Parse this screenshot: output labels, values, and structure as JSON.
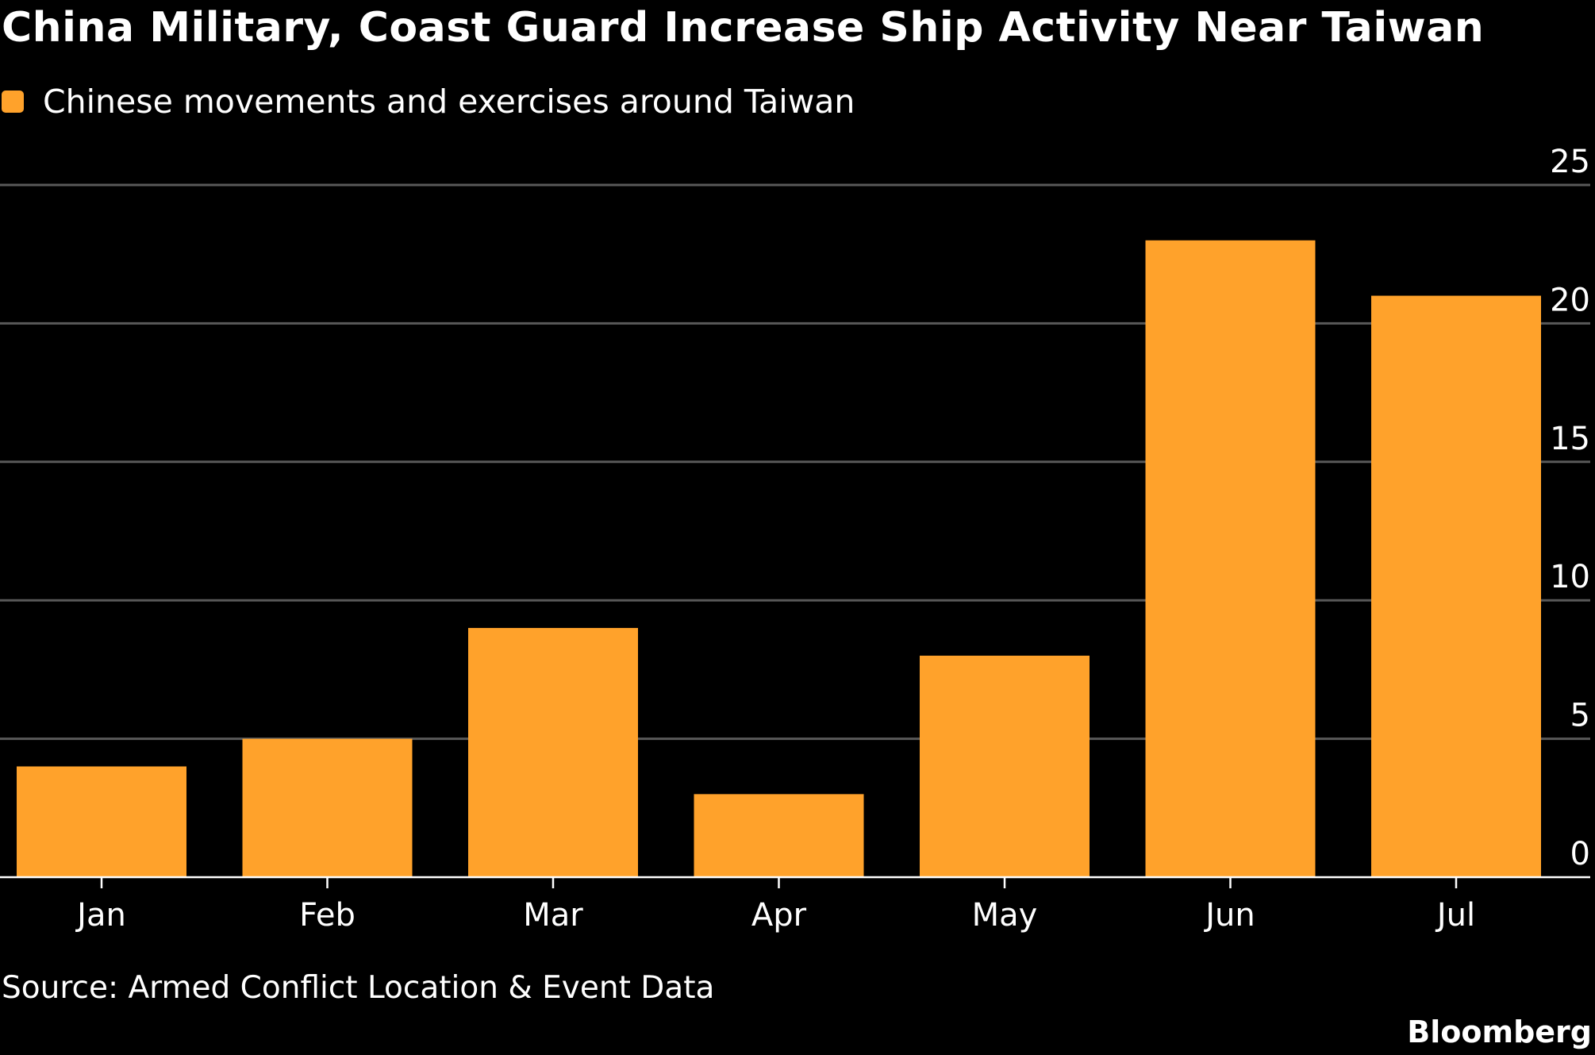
{
  "chart_data": {
    "type": "bar",
    "title": "China Military, Coast Guard Increase Ship Activity Near Taiwan",
    "categories": [
      "Jan",
      "Feb",
      "Mar",
      "Apr",
      "May",
      "Jun",
      "Jul"
    ],
    "series": [
      {
        "name": "Chinese movements and exercises around Taiwan",
        "values": [
          4,
          5,
          9,
          3,
          8,
          23,
          21
        ],
        "color": "#ffa22b"
      }
    ],
    "ylim": [
      0,
      25
    ],
    "yticks": [
      0,
      5,
      10,
      15,
      20,
      25
    ],
    "y_axis_side": "right",
    "grid": true,
    "legend_placement": "top-left",
    "source": "Source: Armed Conflict Location & Event Data",
    "brand": "Bloomberg"
  },
  "colors": {
    "background": "#000000",
    "bar": "#ffa22b",
    "gridline": "#595959",
    "text": "#ffffff"
  }
}
